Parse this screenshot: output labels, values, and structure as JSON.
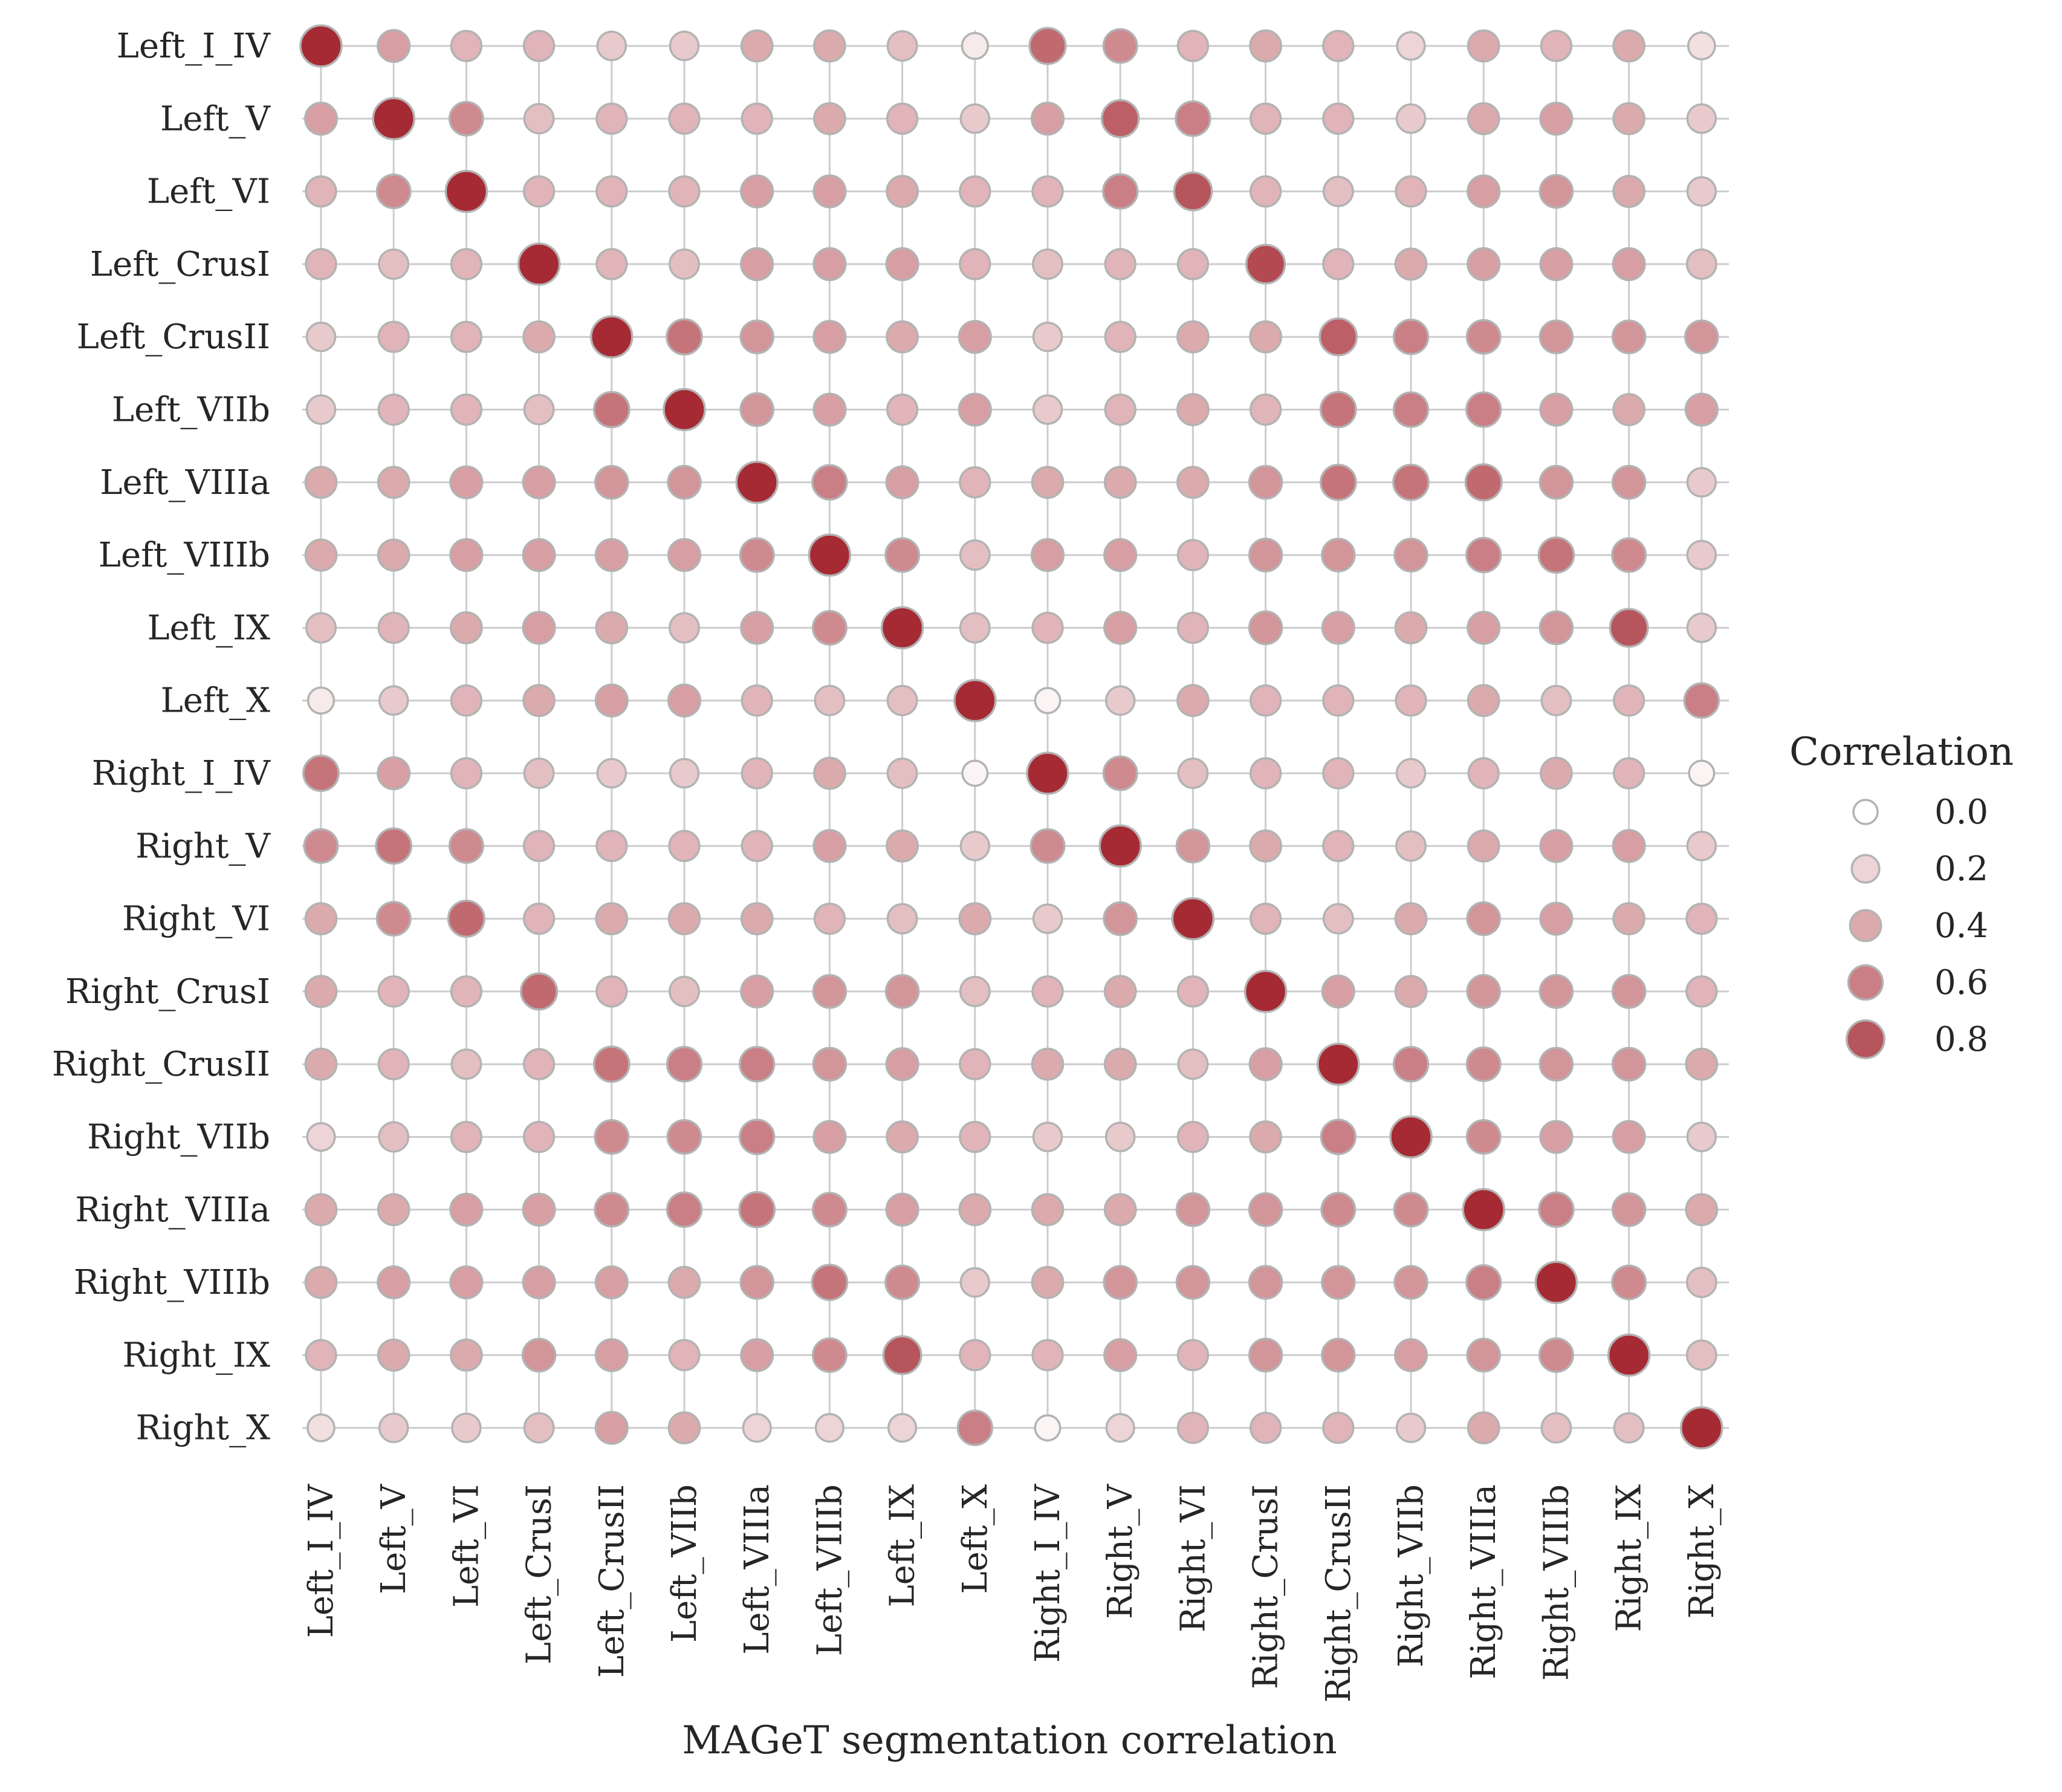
{
  "chart_data": {
    "type": "scatter",
    "subtype": "correlation-matrix-dot-plot",
    "title": "",
    "xlabel": "MAGeT segmentation correlation",
    "ylabel": "",
    "labels": [
      "Left_I_IV",
      "Left_V",
      "Left_VI",
      "Left_CrusI",
      "Left_CrusII",
      "Left_VIIb",
      "Left_VIIIa",
      "Left_VIIIb",
      "Left_IX",
      "Left_X",
      "Right_I_IV",
      "Right_V",
      "Right_VI",
      "Right_CrusI",
      "Right_CrusII",
      "Right_VIIb",
      "Right_VIIIa",
      "Right_VIIIb",
      "Right_IX",
      "Right_X"
    ],
    "grid": true,
    "legend": {
      "title": "Correlation",
      "placement": "right",
      "values": [
        0.0,
        0.2,
        0.4,
        0.6,
        0.8
      ],
      "labels": [
        "0.0",
        "0.2",
        "0.4",
        "0.6",
        "0.8"
      ]
    },
    "color_scale": {
      "low": "#ffffff",
      "high": "#a52a33",
      "vmin": 0.0,
      "vmax": 1.0
    },
    "marker_stroke": "#b3b3b3",
    "matrix": [
      [
        1.0,
        0.45,
        0.35,
        0.35,
        0.25,
        0.25,
        0.4,
        0.4,
        0.3,
        0.1,
        0.7,
        0.55,
        0.35,
        0.4,
        0.35,
        0.2,
        0.4,
        0.35,
        0.4,
        0.15
      ],
      [
        0.45,
        1.0,
        0.55,
        0.3,
        0.35,
        0.35,
        0.35,
        0.4,
        0.35,
        0.25,
        0.45,
        0.75,
        0.6,
        0.35,
        0.35,
        0.25,
        0.4,
        0.45,
        0.4,
        0.25
      ],
      [
        0.35,
        0.55,
        1.0,
        0.35,
        0.35,
        0.35,
        0.45,
        0.45,
        0.4,
        0.35,
        0.35,
        0.6,
        0.8,
        0.35,
        0.3,
        0.35,
        0.45,
        0.5,
        0.4,
        0.25
      ],
      [
        0.35,
        0.3,
        0.35,
        1.0,
        0.35,
        0.3,
        0.45,
        0.45,
        0.45,
        0.35,
        0.3,
        0.35,
        0.35,
        0.85,
        0.35,
        0.4,
        0.45,
        0.45,
        0.45,
        0.3
      ],
      [
        0.25,
        0.35,
        0.35,
        0.4,
        1.0,
        0.65,
        0.5,
        0.45,
        0.4,
        0.45,
        0.25,
        0.35,
        0.4,
        0.4,
        0.75,
        0.6,
        0.55,
        0.5,
        0.5,
        0.5
      ],
      [
        0.25,
        0.35,
        0.35,
        0.3,
        0.65,
        1.0,
        0.5,
        0.45,
        0.35,
        0.45,
        0.25,
        0.35,
        0.4,
        0.35,
        0.65,
        0.6,
        0.6,
        0.45,
        0.4,
        0.45
      ],
      [
        0.4,
        0.4,
        0.45,
        0.45,
        0.5,
        0.5,
        1.0,
        0.6,
        0.45,
        0.35,
        0.4,
        0.4,
        0.4,
        0.5,
        0.65,
        0.65,
        0.7,
        0.5,
        0.5,
        0.25
      ],
      [
        0.4,
        0.4,
        0.45,
        0.45,
        0.45,
        0.45,
        0.55,
        1.0,
        0.55,
        0.3,
        0.45,
        0.45,
        0.35,
        0.5,
        0.5,
        0.5,
        0.6,
        0.65,
        0.55,
        0.25
      ],
      [
        0.3,
        0.35,
        0.4,
        0.45,
        0.4,
        0.3,
        0.45,
        0.55,
        1.0,
        0.3,
        0.35,
        0.45,
        0.35,
        0.5,
        0.45,
        0.4,
        0.45,
        0.5,
        0.8,
        0.25
      ],
      [
        0.1,
        0.25,
        0.35,
        0.4,
        0.45,
        0.45,
        0.35,
        0.3,
        0.3,
        1.0,
        0.05,
        0.25,
        0.4,
        0.35,
        0.35,
        0.35,
        0.4,
        0.3,
        0.35,
        0.6
      ],
      [
        0.65,
        0.45,
        0.35,
        0.3,
        0.25,
        0.25,
        0.35,
        0.4,
        0.3,
        0.05,
        1.0,
        0.55,
        0.3,
        0.35,
        0.35,
        0.25,
        0.35,
        0.4,
        0.35,
        0.05
      ],
      [
        0.55,
        0.65,
        0.55,
        0.35,
        0.35,
        0.35,
        0.35,
        0.45,
        0.4,
        0.25,
        0.55,
        1.0,
        0.5,
        0.4,
        0.35,
        0.3,
        0.4,
        0.45,
        0.45,
        0.25
      ],
      [
        0.4,
        0.55,
        0.7,
        0.35,
        0.4,
        0.4,
        0.4,
        0.35,
        0.3,
        0.4,
        0.25,
        0.5,
        1.0,
        0.35,
        0.3,
        0.4,
        0.5,
        0.45,
        0.4,
        0.35
      ],
      [
        0.4,
        0.35,
        0.35,
        0.7,
        0.35,
        0.3,
        0.45,
        0.5,
        0.5,
        0.3,
        0.35,
        0.4,
        0.35,
        1.0,
        0.45,
        0.4,
        0.5,
        0.5,
        0.5,
        0.35
      ],
      [
        0.4,
        0.35,
        0.3,
        0.35,
        0.65,
        0.6,
        0.6,
        0.5,
        0.45,
        0.35,
        0.4,
        0.4,
        0.3,
        0.45,
        1.0,
        0.6,
        0.55,
        0.5,
        0.5,
        0.4
      ],
      [
        0.2,
        0.3,
        0.35,
        0.35,
        0.55,
        0.55,
        0.6,
        0.45,
        0.4,
        0.35,
        0.25,
        0.25,
        0.35,
        0.4,
        0.6,
        1.0,
        0.55,
        0.45,
        0.45,
        0.25
      ],
      [
        0.4,
        0.4,
        0.45,
        0.45,
        0.55,
        0.6,
        0.65,
        0.55,
        0.45,
        0.4,
        0.4,
        0.4,
        0.5,
        0.5,
        0.55,
        0.55,
        1.0,
        0.6,
        0.5,
        0.4
      ],
      [
        0.4,
        0.45,
        0.45,
        0.45,
        0.45,
        0.4,
        0.5,
        0.65,
        0.55,
        0.25,
        0.4,
        0.5,
        0.5,
        0.5,
        0.5,
        0.5,
        0.6,
        1.0,
        0.55,
        0.3
      ],
      [
        0.35,
        0.4,
        0.4,
        0.5,
        0.45,
        0.35,
        0.45,
        0.55,
        0.8,
        0.35,
        0.35,
        0.45,
        0.35,
        0.5,
        0.5,
        0.45,
        0.5,
        0.55,
        1.0,
        0.3
      ],
      [
        0.15,
        0.25,
        0.25,
        0.3,
        0.45,
        0.4,
        0.2,
        0.2,
        0.2,
        0.6,
        0.05,
        0.2,
        0.35,
        0.35,
        0.35,
        0.25,
        0.4,
        0.3,
        0.3,
        1.0
      ]
    ]
  }
}
